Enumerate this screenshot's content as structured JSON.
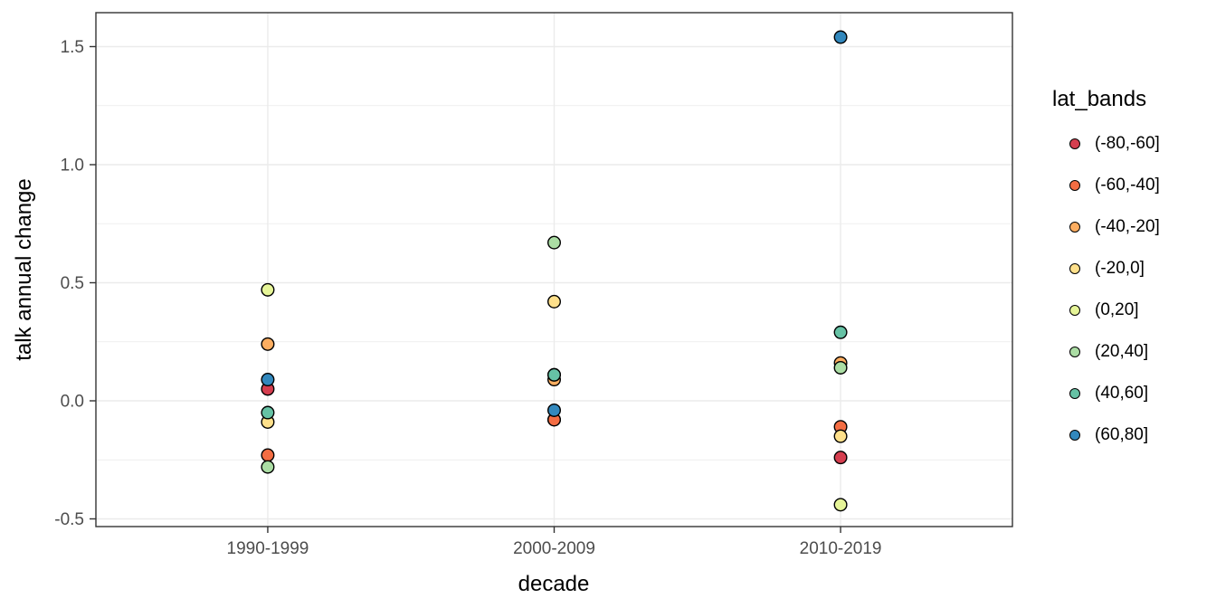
{
  "figure": {
    "background": "#ffffff",
    "panel_border_color": "#333333",
    "gridline_color": "#ebebeb",
    "tick_color": "#333333",
    "tick_label_color": "#4d4d4d",
    "title_color": "#000000"
  },
  "chart_data": {
    "type": "scatter",
    "title": "",
    "xlabel": "decade",
    "ylabel": "talk annual change",
    "legend_title": "lat_bands",
    "legend_position": "right",
    "grid": true,
    "categories": [
      "1990-1999",
      "2000-2009",
      "2010-2019"
    ],
    "series": [
      {
        "name": "(-80,-60]",
        "color": "#d53e4f",
        "values": [
          0.05,
          -0.08,
          -0.24
        ]
      },
      {
        "name": "(-60,-40]",
        "color": "#f46d43",
        "values": [
          -0.23,
          -0.08,
          -0.11
        ]
      },
      {
        "name": "(-40,-20]",
        "color": "#fdae61",
        "values": [
          0.24,
          0.09,
          0.16
        ]
      },
      {
        "name": "(-20,0]",
        "color": "#fee08b",
        "values": [
          -0.09,
          0.42,
          -0.15
        ]
      },
      {
        "name": "(0,20]",
        "color": "#e6f598",
        "values": [
          0.47,
          0.11,
          -0.44
        ]
      },
      {
        "name": "(20,40]",
        "color": "#abdda4",
        "values": [
          -0.28,
          0.67,
          0.14
        ]
      },
      {
        "name": "(40,60]",
        "color": "#66c2a5",
        "values": [
          -0.05,
          0.11,
          0.29
        ]
      },
      {
        "name": "(60,80]",
        "color": "#3288bd",
        "values": [
          0.09,
          -0.04,
          1.54
        ]
      }
    ],
    "yticks": [
      -0.5,
      0.0,
      0.5,
      1.0,
      1.5
    ],
    "ytick_labels": [
      "-0.5",
      "0.0",
      "0.5",
      "1.0",
      "1.5"
    ],
    "ylim": [
      -0.53,
      1.64
    ]
  }
}
